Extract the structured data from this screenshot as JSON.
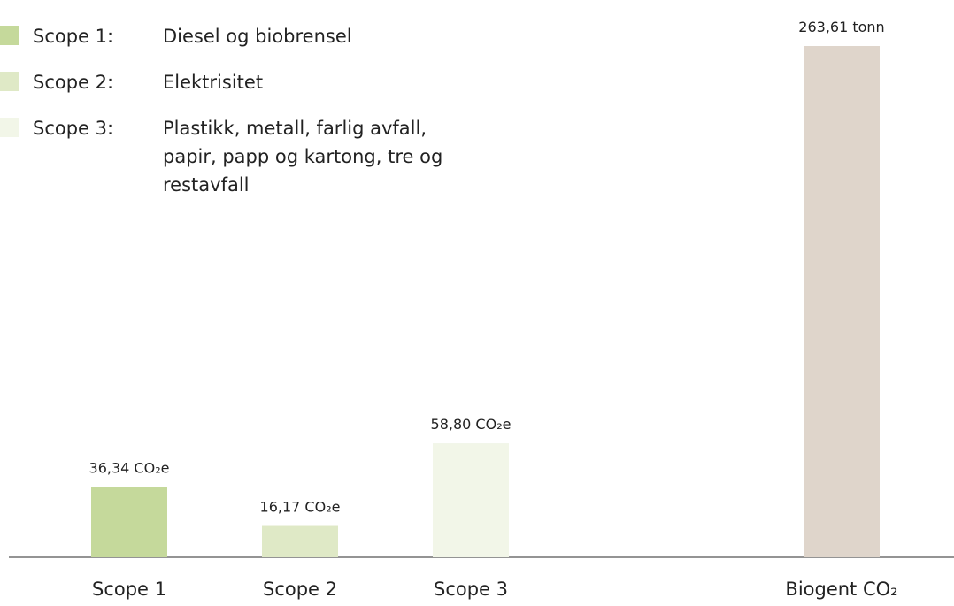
{
  "chart_data": {
    "type": "bar",
    "categories": [
      "Scope 1",
      "Scope 2",
      "Scope 3",
      "Biogent CO₂"
    ],
    "values": [
      36.34,
      16.17,
      58.8,
      263.61
    ],
    "value_labels": [
      "36,34 CO₂e",
      "16,17 CO₂e",
      "58,80 CO₂e",
      "263,61 tonn"
    ],
    "colors": [
      "#c5d99b",
      "#dfe9c6",
      "#f2f6e8",
      "#dfd5cb"
    ],
    "legend": [
      {
        "label": "Scope 1:",
        "description": "Diesel og biobrensel"
      },
      {
        "label": "Scope 2:",
        "description": "Elektrisitet"
      },
      {
        "label": "Scope 3:",
        "description": "Plastikk, metall, farlig avfall, papir, papp og kartong, tre og restavfall"
      }
    ]
  }
}
